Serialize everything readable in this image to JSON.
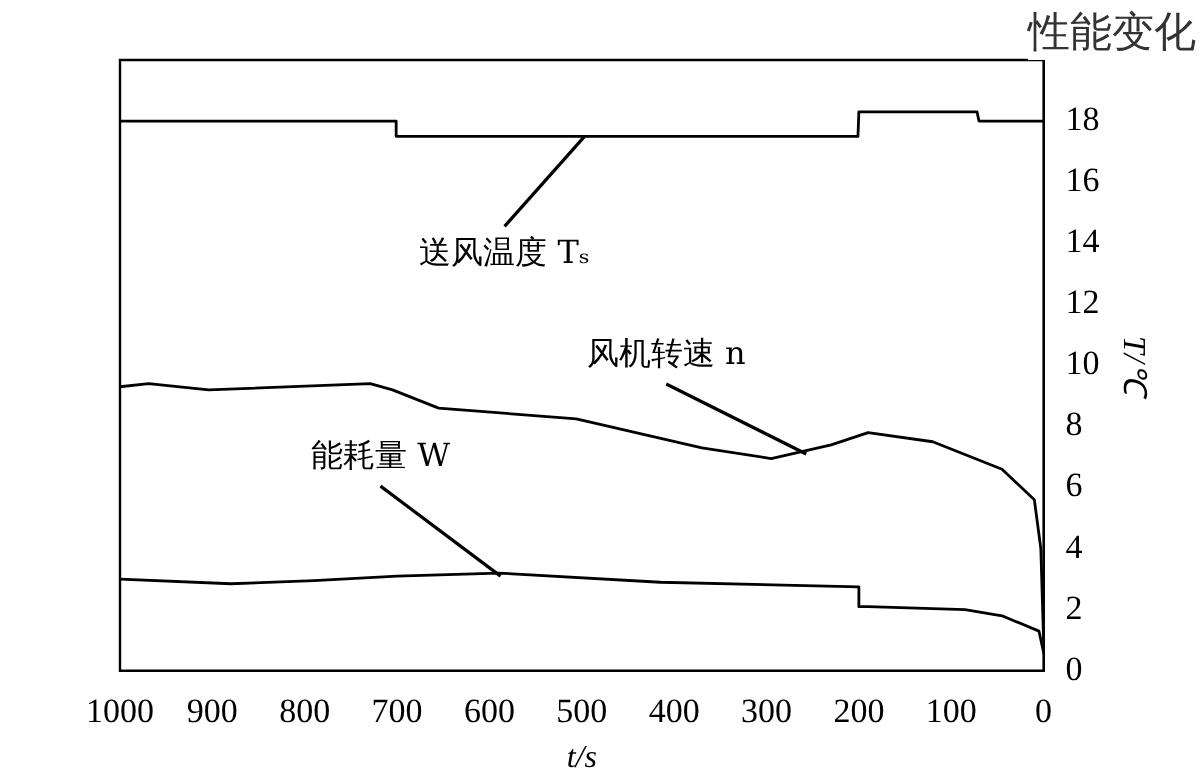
{
  "chart_data": {
    "type": "line",
    "title": "性能变化",
    "xlabel": "t/s",
    "ylabel": "T/℃",
    "xlim": [
      1000,
      0
    ],
    "xticks": [
      0,
      100,
      200,
      300,
      400,
      500,
      600,
      700,
      800,
      900,
      1000
    ],
    "ylim": [
      0,
      20
    ],
    "yticks": [
      0,
      2,
      4,
      6,
      8,
      10,
      12,
      14,
      16,
      18
    ],
    "grid": false,
    "legend": false,
    "marker": "none",
    "line_style": "solid",
    "series": [
      {
        "color": "#000000",
        "x": [
          0,
          70,
          72,
          200,
          201,
          700,
          701,
          1000
        ],
        "values": [
          18.0,
          18.0,
          18.3,
          18.3,
          17.5,
          17.5,
          18.0,
          18.0
        ]
      },
      {
        "color": "#000000",
        "x": [
          0,
          3,
          10,
          45,
          120,
          190,
          230,
          295,
          370,
          506,
          655,
          705,
          729,
          904,
          969,
          1000
        ],
        "values": [
          1.0,
          4.0,
          5.6,
          6.6,
          7.5,
          7.8,
          7.4,
          6.95,
          7.3,
          8.25,
          8.6,
          9.2,
          9.4,
          9.2,
          9.4,
          9.3
        ]
      },
      {
        "color": "#000000",
        "x": [
          0,
          5,
          45,
          85,
          190,
          199,
          200,
          415,
          590,
          700,
          790,
          880,
          1000
        ],
        "values": [
          0.6,
          1.3,
          1.8,
          2.0,
          2.1,
          2.1,
          2.75,
          2.9,
          3.2,
          3.1,
          2.95,
          2.85,
          3.0
        ]
      }
    ],
    "annotations": [
      {
        "text": "送风温度 Tₛ",
        "x": 497,
        "y": 17.5
      },
      {
        "text": "风机转速 n",
        "x": 257,
        "y": 7.1
      },
      {
        "text": "能耗量 W",
        "x": 588,
        "y": 3.1
      }
    ]
  }
}
